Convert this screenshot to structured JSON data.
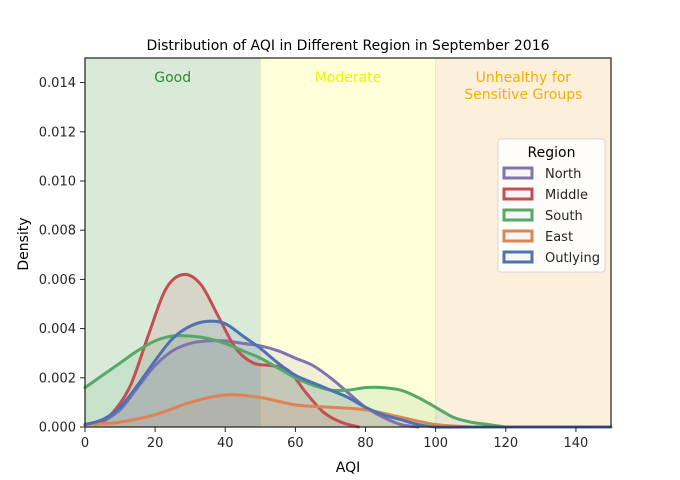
{
  "chart_data": {
    "type": "area",
    "title": "Distribution of AQI in Different Region in September 2016",
    "xlabel": "AQI",
    "ylabel": "Density",
    "xlim": [
      0,
      150
    ],
    "ylim": [
      0,
      0.015
    ],
    "xticks": [
      0,
      20,
      40,
      60,
      80,
      100,
      120,
      140
    ],
    "yticks": [
      0.0,
      0.002,
      0.004,
      0.006,
      0.008,
      0.01,
      0.012,
      0.014
    ],
    "grid": false,
    "bands": [
      {
        "label": [
          "Good"
        ],
        "from": 0,
        "to": 50,
        "fill": "#d9ead9",
        "text_color": "#2e8b2e"
      },
      {
        "label": [
          "Moderate"
        ],
        "from": 50,
        "to": 100,
        "fill": "#ffffd9",
        "text_color": "#f2f200"
      },
      {
        "label": [
          "Unhealthy for",
          "Sensitive Groups"
        ],
        "from": 100,
        "to": 150,
        "fill": "#fcefdc",
        "text_color": "#f2b000"
      }
    ],
    "legend": {
      "title": "Region",
      "placement": "center-right"
    },
    "series": [
      {
        "name": "North",
        "color": "#8172b2",
        "x": [
          5,
          10,
          15,
          20,
          25,
          30,
          35,
          40,
          45,
          50,
          55,
          60,
          65,
          70,
          75,
          80,
          85,
          90,
          95
        ],
        "y": [
          0.0002,
          0.0007,
          0.0016,
          0.0025,
          0.0031,
          0.0034,
          0.0035,
          0.0035,
          0.0034,
          0.0033,
          0.0031,
          0.0028,
          0.0025,
          0.002,
          0.0014,
          0.0008,
          0.0004,
          0.0001,
          0.0
        ]
      },
      {
        "name": "Middle",
        "color": "#c44e52",
        "x": [
          3,
          8,
          13,
          18,
          23,
          28,
          33,
          38,
          43,
          48,
          53,
          58,
          63,
          68,
          73,
          78
        ],
        "y": [
          0.0001,
          0.0006,
          0.0017,
          0.0037,
          0.0056,
          0.0062,
          0.0058,
          0.0045,
          0.0032,
          0.0026,
          0.0025,
          0.0023,
          0.0014,
          0.0006,
          0.0002,
          0.0
        ]
      },
      {
        "name": "South",
        "color": "#55a868",
        "x": [
          0,
          5,
          10,
          15,
          20,
          25,
          30,
          35,
          40,
          45,
          50,
          55,
          60,
          65,
          70,
          75,
          80,
          85,
          90,
          95,
          100,
          105,
          110,
          115,
          120
        ],
        "y": [
          0.0016,
          0.0021,
          0.0026,
          0.0031,
          0.0035,
          0.0037,
          0.0037,
          0.0036,
          0.0034,
          0.0031,
          0.0028,
          0.0024,
          0.002,
          0.0017,
          0.0015,
          0.0015,
          0.0016,
          0.0016,
          0.0015,
          0.0012,
          0.0008,
          0.0004,
          0.0002,
          0.0001,
          0.0
        ]
      },
      {
        "name": "East",
        "color": "#dd8452",
        "x": [
          0,
          10,
          20,
          30,
          40,
          50,
          60,
          70,
          80,
          90,
          100,
          110
        ],
        "y": [
          0.0001,
          0.0002,
          0.0005,
          0.001,
          0.0013,
          0.0012,
          0.0009,
          0.0008,
          0.0007,
          0.0004,
          0.0001,
          0.0
        ]
      },
      {
        "name": "Outlying",
        "color": "#4c72b0",
        "x": [
          0,
          5,
          10,
          15,
          20,
          25,
          30,
          35,
          40,
          45,
          50,
          55,
          60,
          65,
          70,
          75,
          80,
          85,
          90,
          95,
          100,
          110,
          120,
          130,
          140,
          150
        ],
        "y": [
          0.0001,
          0.0003,
          0.0008,
          0.0017,
          0.0027,
          0.0036,
          0.0041,
          0.0043,
          0.0042,
          0.0037,
          0.0032,
          0.0026,
          0.0021,
          0.0018,
          0.0015,
          0.0012,
          0.0008,
          0.0005,
          0.0003,
          0.0001,
          0.0,
          0.0,
          0.0,
          0.0,
          0.0,
          0.0
        ]
      }
    ]
  }
}
